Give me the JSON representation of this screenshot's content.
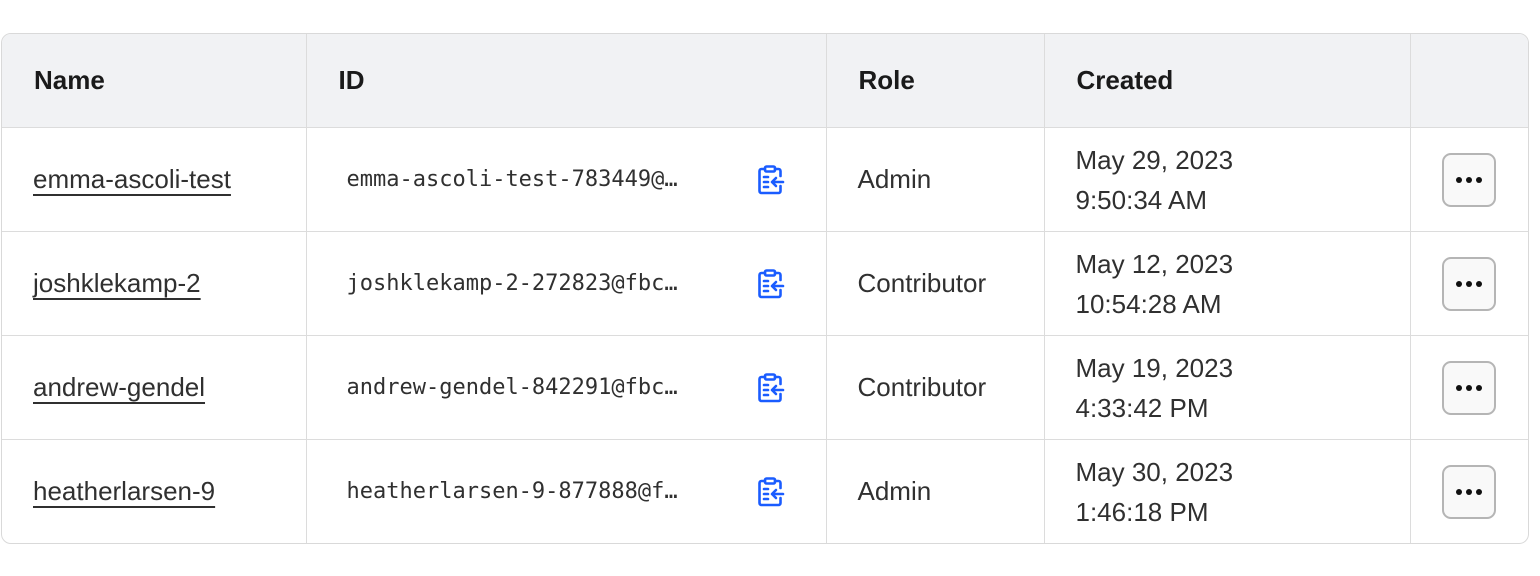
{
  "table": {
    "headers": [
      "Name",
      "ID",
      "Role",
      "Created",
      ""
    ],
    "rows": [
      {
        "name": "emma-ascoli-test",
        "id": "emma-ascoli-test-783449@…",
        "role": "Admin",
        "date": "May 29, 2023",
        "time": "9:50:34 AM"
      },
      {
        "name": "joshklekamp-2",
        "id": "joshklekamp-2-272823@fbc…",
        "role": "Contributor",
        "date": "May 12, 2023",
        "time": "10:54:28 AM"
      },
      {
        "name": "andrew-gendel",
        "id": "andrew-gendel-842291@fbc…",
        "role": "Contributor",
        "date": "May 19, 2023",
        "time": "4:33:42 PM"
      },
      {
        "name": "heatherlarsen-9",
        "id": "heatherlarsen-9-877888@f…",
        "role": "Admin",
        "date": "May 30, 2023",
        "time": "1:46:18 PM"
      }
    ]
  },
  "colors": {
    "copy_icon": "#1a5cff",
    "header_bg": "#f1f2f4"
  },
  "icons": {
    "copy": "clipboard-copy-icon",
    "more": "more-horizontal-icon"
  }
}
